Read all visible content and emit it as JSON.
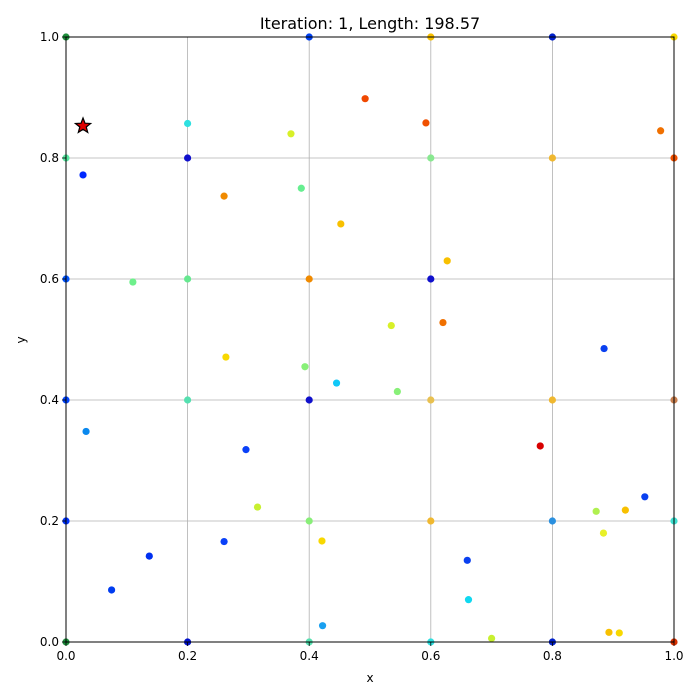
{
  "chart_data": {
    "type": "scatter",
    "title": "Iteration: 1, Length: 198.57",
    "xlabel": "x",
    "ylabel": "y",
    "xlim": [
      0,
      1
    ],
    "ylim": [
      0,
      1
    ],
    "xticks": [
      "0.0",
      "0.2",
      "0.4",
      "0.6",
      "0.8",
      "1.0"
    ],
    "yticks": [
      "0.0",
      "0.2",
      "0.4",
      "0.6",
      "0.8",
      "1.0"
    ],
    "grid": true,
    "legend": "none",
    "points": [
      {
        "x": 0.0,
        "y": 0.0,
        "color": "#1e8f3c"
      },
      {
        "x": 0.0,
        "y": 0.2,
        "color": "#0033ff"
      },
      {
        "x": 0.0,
        "y": 0.4,
        "color": "#0044ff"
      },
      {
        "x": 0.0,
        "y": 0.6,
        "color": "#0055ff"
      },
      {
        "x": 0.0,
        "y": 0.8,
        "color": "#55e8a0"
      },
      {
        "x": 0.0,
        "y": 1.0,
        "color": "#1e8f3c"
      },
      {
        "x": 0.028,
        "y": 0.772,
        "color": "#0028ff"
      },
      {
        "x": 0.033,
        "y": 0.348,
        "color": "#0a88ee"
      },
      {
        "x": 0.075,
        "y": 0.086,
        "color": "#003cf0"
      },
      {
        "x": 0.11,
        "y": 0.595,
        "color": "#6ef08c"
      },
      {
        "x": 0.137,
        "y": 0.142,
        "color": "#0030f0"
      },
      {
        "x": 0.2,
        "y": 0.0,
        "color": "#0010cc"
      },
      {
        "x": 0.2,
        "y": 0.4,
        "color": "#55e0b0"
      },
      {
        "x": 0.2,
        "y": 0.6,
        "color": "#66e890"
      },
      {
        "x": 0.2,
        "y": 0.8,
        "color": "#1010cc"
      },
      {
        "x": 0.2,
        "y": 0.857,
        "color": "#2ee0e0"
      },
      {
        "x": 0.26,
        "y": 0.166,
        "color": "#0a40f8"
      },
      {
        "x": 0.26,
        "y": 0.737,
        "color": "#f08a00"
      },
      {
        "x": 0.263,
        "y": 0.471,
        "color": "#f8d800"
      },
      {
        "x": 0.296,
        "y": 0.318,
        "color": "#0a40f8"
      },
      {
        "x": 0.315,
        "y": 0.223,
        "color": "#c8f030"
      },
      {
        "x": 0.37,
        "y": 0.84,
        "color": "#d8f028"
      },
      {
        "x": 0.387,
        "y": 0.75,
        "color": "#66ee90"
      },
      {
        "x": 0.393,
        "y": 0.455,
        "color": "#88f078"
      },
      {
        "x": 0.4,
        "y": 0.0,
        "color": "#55e0b0"
      },
      {
        "x": 0.4,
        "y": 0.2,
        "color": "#88ee78"
      },
      {
        "x": 0.4,
        "y": 0.4,
        "color": "#1010cc"
      },
      {
        "x": 0.4,
        "y": 0.6,
        "color": "#f08a00"
      },
      {
        "x": 0.4,
        "y": 1.0,
        "color": "#0040f0"
      },
      {
        "x": 0.421,
        "y": 0.167,
        "color": "#f8d800"
      },
      {
        "x": 0.422,
        "y": 0.027,
        "color": "#1aa0f0"
      },
      {
        "x": 0.445,
        "y": 0.428,
        "color": "#10c8f8"
      },
      {
        "x": 0.452,
        "y": 0.691,
        "color": "#f8c000"
      },
      {
        "x": 0.492,
        "y": 0.898,
        "color": "#f04800"
      },
      {
        "x": 0.535,
        "y": 0.523,
        "color": "#d8f028"
      },
      {
        "x": 0.545,
        "y": 0.414,
        "color": "#88f078"
      },
      {
        "x": 0.592,
        "y": 0.858,
        "color": "#f05000"
      },
      {
        "x": 0.6,
        "y": 0.0,
        "color": "#2ee0e0"
      },
      {
        "x": 0.6,
        "y": 0.2,
        "color": "#f0b830"
      },
      {
        "x": 0.6,
        "y": 0.4,
        "color": "#e8c050"
      },
      {
        "x": 0.6,
        "y": 0.6,
        "color": "#1010cc"
      },
      {
        "x": 0.6,
        "y": 0.8,
        "color": "#88e890"
      },
      {
        "x": 0.6,
        "y": 1.0,
        "color": "#f8c000"
      },
      {
        "x": 0.62,
        "y": 0.528,
        "color": "#f07000"
      },
      {
        "x": 0.627,
        "y": 0.63,
        "color": "#f8c000"
      },
      {
        "x": 0.66,
        "y": 0.135,
        "color": "#0a40f0"
      },
      {
        "x": 0.662,
        "y": 0.07,
        "color": "#10d8f0"
      },
      {
        "x": 0.7,
        "y": 0.006,
        "color": "#c8f030"
      },
      {
        "x": 0.78,
        "y": 0.324,
        "color": "#d80000"
      },
      {
        "x": 0.8,
        "y": 0.0,
        "color": "#0020cc"
      },
      {
        "x": 0.8,
        "y": 0.2,
        "color": "#2a90e0"
      },
      {
        "x": 0.8,
        "y": 0.4,
        "color": "#f0b830"
      },
      {
        "x": 0.8,
        "y": 0.8,
        "color": "#f0b830"
      },
      {
        "x": 0.8,
        "y": 1.0,
        "color": "#0020cc"
      },
      {
        "x": 0.872,
        "y": 0.216,
        "color": "#b0f050"
      },
      {
        "x": 0.884,
        "y": 0.18,
        "color": "#e8f028"
      },
      {
        "x": 0.885,
        "y": 0.485,
        "color": "#0a40f0"
      },
      {
        "x": 0.893,
        "y": 0.016,
        "color": "#f8c000"
      },
      {
        "x": 0.91,
        "y": 0.015,
        "color": "#f8d800"
      },
      {
        "x": 0.92,
        "y": 0.218,
        "color": "#f8c000"
      },
      {
        "x": 0.952,
        "y": 0.24,
        "color": "#0a40f0"
      },
      {
        "x": 0.978,
        "y": 0.845,
        "color": "#f07000"
      },
      {
        "x": 1.0,
        "y": 0.0,
        "color": "#d83000"
      },
      {
        "x": 1.0,
        "y": 0.2,
        "color": "#3ee0d0"
      },
      {
        "x": 1.0,
        "y": 0.4,
        "color": "#c88050"
      },
      {
        "x": 1.0,
        "y": 0.8,
        "color": "#f05000"
      },
      {
        "x": 1.0,
        "y": 1.0,
        "color": "#f8d800"
      }
    ],
    "highlight": {
      "x": 0.028,
      "y": 0.853,
      "marker": "star",
      "color": "#e00000",
      "edge_color": "#000000"
    }
  }
}
